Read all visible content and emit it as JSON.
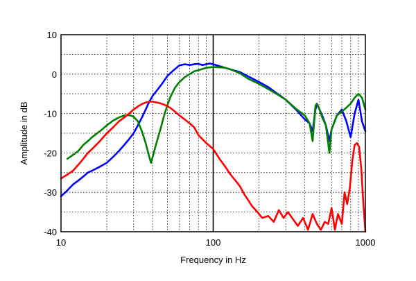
{
  "chart_data": {
    "type": "line",
    "xlabel": "Frequency in Hz",
    "ylabel": "Amplitude in dB",
    "xscale": "log",
    "xlim": [
      10,
      1000
    ],
    "ylim": [
      -40,
      10
    ],
    "xticks": [
      10,
      100,
      1000
    ],
    "xtick_labels": [
      "10",
      "100",
      "1000"
    ],
    "yticks": [
      10,
      0,
      -10,
      -20,
      -30,
      -40
    ],
    "ytick_labels": [
      "10",
      "0",
      "-10",
      "-20",
      "-30",
      "-40"
    ],
    "grid": true,
    "series": [
      {
        "color": "#0000ff",
        "x": [
          10,
          11,
          12,
          13,
          14,
          15,
          16,
          18,
          20,
          22,
          24,
          26,
          28,
          30,
          32,
          34,
          36,
          38,
          40,
          43,
          46,
          50,
          55,
          60,
          65,
          70,
          75,
          80,
          85,
          90,
          95,
          100,
          110,
          120,
          130,
          150,
          170,
          200,
          230,
          260,
          300,
          350,
          400,
          430,
          450,
          470,
          480,
          500,
          520,
          550,
          580,
          600,
          650,
          700,
          750,
          800,
          850,
          900,
          950,
          1000
        ],
        "y": [
          -31,
          -29.5,
          -28,
          -27,
          -26,
          -25,
          -24.5,
          -23.5,
          -22.5,
          -21,
          -19.5,
          -18,
          -16.5,
          -15,
          -13,
          -11,
          -9,
          -7,
          -5.5,
          -4,
          -2.5,
          -0.5,
          1,
          2.2,
          2.5,
          2.3,
          2.5,
          2.6,
          2.3,
          2.5,
          2.7,
          2.5,
          2.0,
          1.6,
          1.2,
          0.5,
          -0.6,
          -2,
          -3.3,
          -4.8,
          -6.5,
          -9,
          -11.5,
          -12.5,
          -14.5,
          -9,
          -7.5,
          -9,
          -10.5,
          -13,
          -17,
          -14,
          -10.5,
          -9,
          -12,
          -16,
          -10,
          -6.5,
          -12,
          -14.5
        ]
      },
      {
        "color": "#008000",
        "x": [
          11,
          12,
          13,
          14,
          15,
          16,
          18,
          20,
          22,
          24,
          26,
          28,
          30,
          32,
          34,
          36,
          38,
          39,
          40,
          42,
          45,
          48,
          52,
          56,
          60,
          65,
          70,
          75,
          80,
          90,
          100,
          110,
          120,
          130,
          150,
          170,
          200,
          230,
          260,
          300,
          350,
          400,
          430,
          450,
          470,
          480,
          500,
          520,
          550,
          580,
          600,
          650,
          700,
          750,
          800,
          850,
          900,
          950,
          1000
        ],
        "y": [
          -21.5,
          -20.5,
          -19.5,
          -18,
          -17,
          -16,
          -14.5,
          -13,
          -11.8,
          -11,
          -10.5,
          -10.4,
          -10.8,
          -12,
          -14.5,
          -17.5,
          -21,
          -22.5,
          -21,
          -18,
          -14,
          -10,
          -6,
          -3.5,
          -2,
          -0.8,
          0,
          0.7,
          1,
          1.6,
          1.8,
          1.7,
          1.6,
          1.2,
          0.2,
          -1.2,
          -2.5,
          -3.8,
          -5,
          -6.5,
          -8.8,
          -10.5,
          -12.5,
          -17,
          -8,
          -7.5,
          -9,
          -11,
          -13,
          -20,
          -14,
          -10.5,
          -9.5,
          -8.5,
          -7.5,
          -6,
          -5,
          -6,
          -9
        ]
      },
      {
        "color": "#ff0000",
        "x": [
          10,
          11,
          12,
          13,
          14,
          15,
          16,
          18,
          20,
          22,
          24,
          26,
          28,
          30,
          32,
          34,
          36,
          38,
          40,
          44,
          48,
          52,
          56,
          60,
          65,
          70,
          75,
          80,
          90,
          100,
          110,
          120,
          130,
          140,
          150,
          160,
          170,
          180,
          190,
          200,
          210,
          230,
          250,
          270,
          290,
          310,
          330,
          360,
          390,
          420,
          450,
          480,
          510,
          540,
          570,
          600,
          630,
          660,
          700,
          730,
          760,
          790,
          820,
          850,
          880,
          910,
          940,
          970,
          1000
        ],
        "y": [
          -26.5,
          -25.5,
          -24.5,
          -23,
          -21.5,
          -20,
          -19,
          -17,
          -15,
          -13.5,
          -12,
          -11,
          -10,
          -9,
          -8.2,
          -7.6,
          -7.2,
          -7,
          -7,
          -7.3,
          -7.8,
          -8.5,
          -9.5,
          -10.5,
          -11.5,
          -12.5,
          -13.5,
          -15.5,
          -17.5,
          -19,
          -21.5,
          -23.5,
          -25.5,
          -27,
          -28.5,
          -30.5,
          -32,
          -33.5,
          -34.5,
          -35.5,
          -36.5,
          -36,
          -37.5,
          -34.5,
          -36.5,
          -35,
          -36.5,
          -38.5,
          -36.5,
          -39.5,
          -35.5,
          -38,
          -39.5,
          -37.5,
          -38,
          -34,
          -39.5,
          -35.5,
          -38,
          -30,
          -33,
          -29,
          -22,
          -18,
          -17.5,
          -18.5,
          -24,
          -33,
          -40
        ]
      }
    ]
  }
}
